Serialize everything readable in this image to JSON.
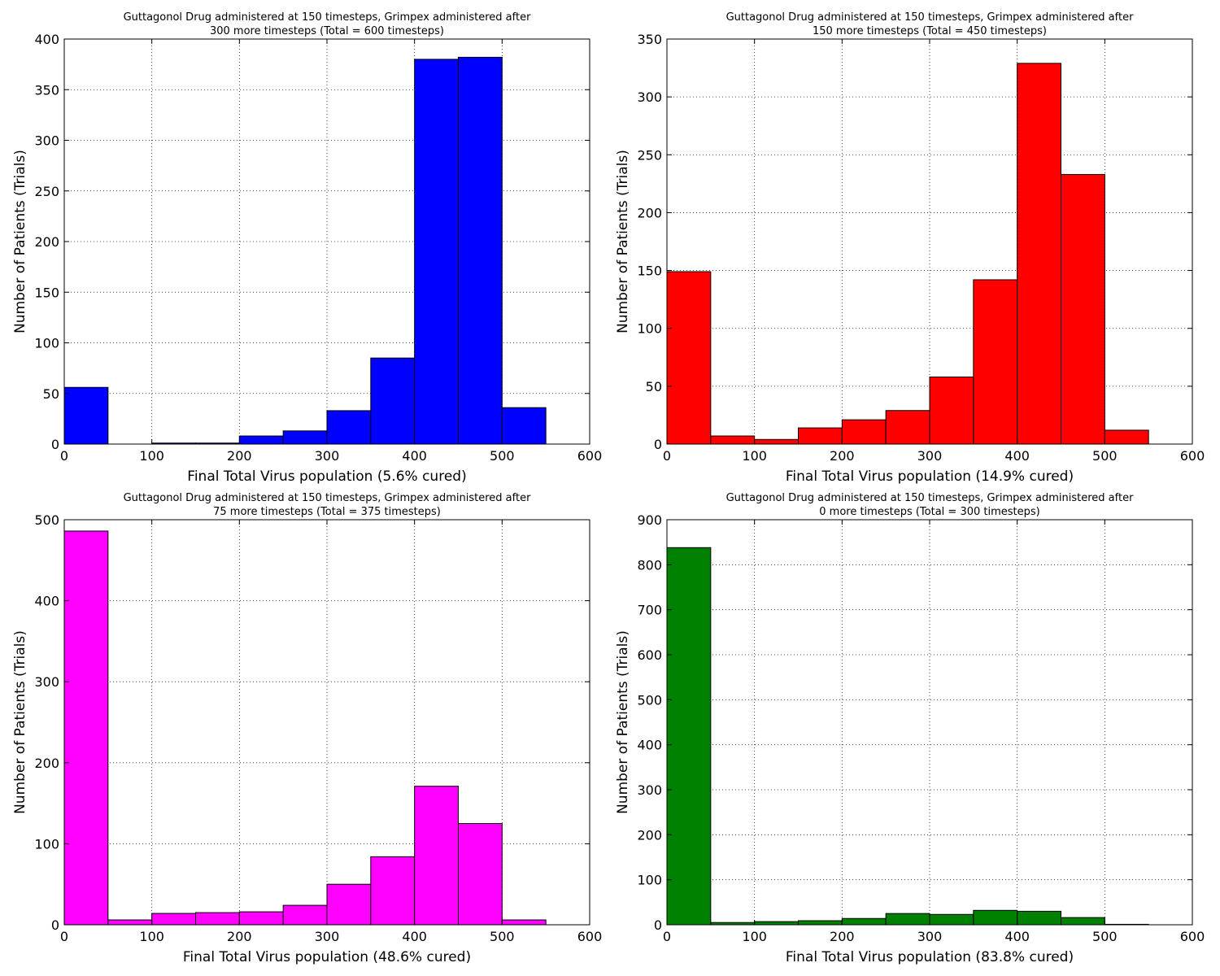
{
  "chart_data": [
    {
      "type": "bar",
      "title_lines": [
        "Guttagonol Drug administered at 150 timesteps, Grimpex administered after",
        "300 more timesteps (Total = 600 timesteps)"
      ],
      "xlabel": "Final Total Virus population (5.6% cured)",
      "ylabel": "Number of Patients (Trials)",
      "color": "#0000ff",
      "xlim": [
        0,
        600
      ],
      "ylim": [
        0,
        400
      ],
      "xticks": [
        0,
        100,
        200,
        300,
        400,
        500,
        600
      ],
      "yticks": [
        0,
        50,
        100,
        150,
        200,
        250,
        300,
        350,
        400
      ],
      "grid": true,
      "bins": [
        [
          0,
          50
        ],
        [
          50,
          100
        ],
        [
          100,
          150
        ],
        [
          150,
          200
        ],
        [
          200,
          250
        ],
        [
          250,
          300
        ],
        [
          300,
          350
        ],
        [
          350,
          400
        ],
        [
          400,
          450
        ],
        [
          450,
          500
        ],
        [
          500,
          550
        ]
      ],
      "values": [
        56,
        0,
        1,
        1,
        8,
        13,
        33,
        85,
        380,
        382,
        36
      ]
    },
    {
      "type": "bar",
      "title_lines": [
        "Guttagonol Drug administered at 150 timesteps, Grimpex administered after",
        "150 more timesteps (Total = 450 timesteps)"
      ],
      "xlabel": "Final Total Virus population (14.9% cured)",
      "ylabel": "Number of Patients (Trials)",
      "color": "#ff0000",
      "xlim": [
        0,
        600
      ],
      "ylim": [
        0,
        350
      ],
      "xticks": [
        0,
        100,
        200,
        300,
        400,
        500,
        600
      ],
      "yticks": [
        0,
        50,
        100,
        150,
        200,
        250,
        300,
        350
      ],
      "grid": true,
      "bins": [
        [
          0,
          50
        ],
        [
          50,
          100
        ],
        [
          100,
          150
        ],
        [
          150,
          200
        ],
        [
          200,
          250
        ],
        [
          250,
          300
        ],
        [
          300,
          350
        ],
        [
          350,
          400
        ],
        [
          400,
          450
        ],
        [
          450,
          500
        ],
        [
          500,
          550
        ]
      ],
      "values": [
        149,
        7,
        4,
        14,
        21,
        29,
        58,
        142,
        329,
        233,
        12
      ]
    },
    {
      "type": "bar",
      "title_lines": [
        "Guttagonol Drug administered at 150 timesteps, Grimpex administered after",
        "75 more timesteps (Total = 375 timesteps)"
      ],
      "xlabel": "Final Total Virus population (48.6% cured)",
      "ylabel": "Number of Patients (Trials)",
      "color": "#ff00ff",
      "xlim": [
        0,
        600
      ],
      "ylim": [
        0,
        500
      ],
      "xticks": [
        0,
        100,
        200,
        300,
        400,
        500,
        600
      ],
      "yticks": [
        0,
        100,
        200,
        300,
        400,
        500
      ],
      "grid": true,
      "bins": [
        [
          0,
          50
        ],
        [
          50,
          100
        ],
        [
          100,
          150
        ],
        [
          150,
          200
        ],
        [
          200,
          250
        ],
        [
          250,
          300
        ],
        [
          300,
          350
        ],
        [
          350,
          400
        ],
        [
          400,
          450
        ],
        [
          450,
          500
        ],
        [
          500,
          550
        ]
      ],
      "values": [
        486,
        6,
        14,
        15,
        16,
        24,
        50,
        84,
        171,
        125,
        6
      ]
    },
    {
      "type": "bar",
      "title_lines": [
        "Guttagonol Drug administered at 150 timesteps, Grimpex administered after",
        "0 more timesteps (Total = 300 timesteps)"
      ],
      "xlabel": "Final Total Virus population (83.8% cured)",
      "ylabel": "Number of Patients (Trials)",
      "color": "#008000",
      "xlim": [
        0,
        600
      ],
      "ylim": [
        0,
        900
      ],
      "xticks": [
        0,
        100,
        200,
        300,
        400,
        500,
        600
      ],
      "yticks": [
        0,
        100,
        200,
        300,
        400,
        500,
        600,
        700,
        800,
        900
      ],
      "grid": true,
      "bins": [
        [
          0,
          50
        ],
        [
          50,
          100
        ],
        [
          100,
          150
        ],
        [
          150,
          200
        ],
        [
          200,
          250
        ],
        [
          250,
          300
        ],
        [
          300,
          350
        ],
        [
          350,
          400
        ],
        [
          400,
          450
        ],
        [
          450,
          500
        ],
        [
          500,
          550
        ]
      ],
      "values": [
        838,
        5,
        7,
        9,
        14,
        25,
        23,
        32,
        30,
        16,
        1
      ]
    }
  ]
}
